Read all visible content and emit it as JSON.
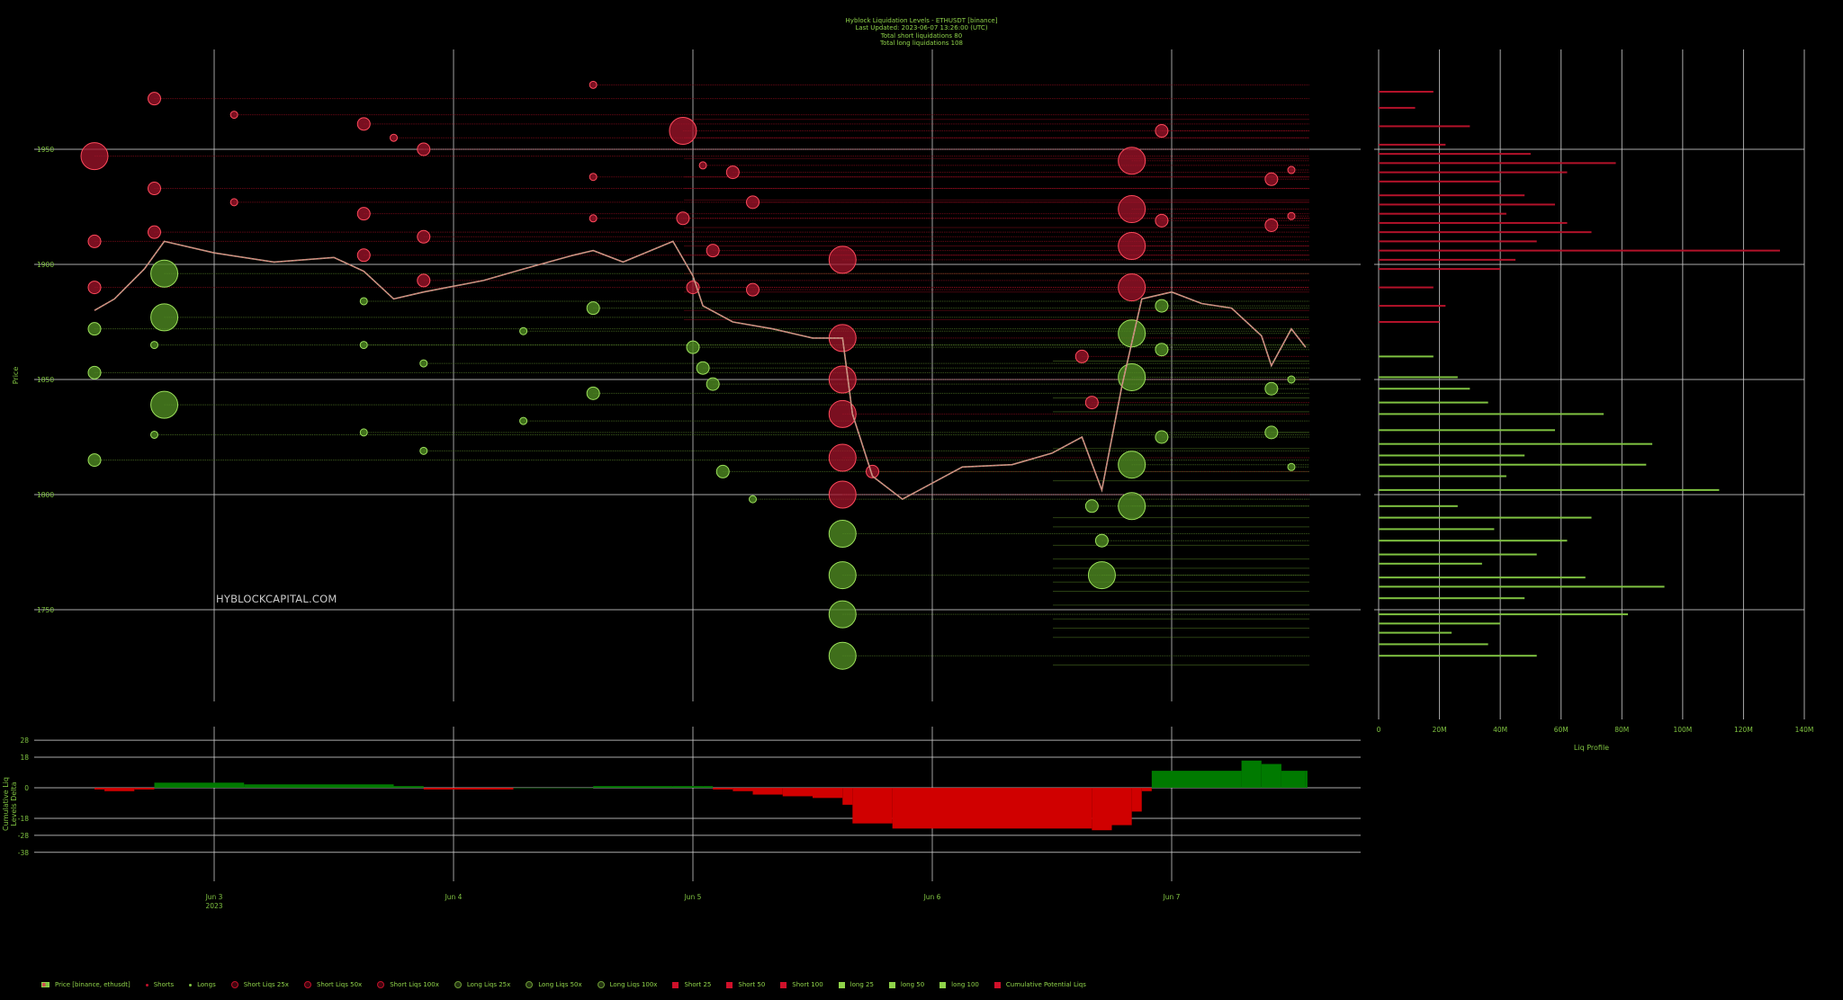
{
  "header": {
    "line1": "Hyblock Liquidation Levels - ETHUSDT [binance]",
    "line2": "Last Updated:  2023-06-07 13:26:00 (UTC)",
    "line3": "Total short liquidations 80",
    "line4": "Total long liquidations 108"
  },
  "watermark": "HYBLOCKCAPITAL.COM",
  "colors": {
    "background": "#000000",
    "text": "#7fc241",
    "short": "#c0102a",
    "long": "#7fc241",
    "delta_pos": "#007a00",
    "delta_neg": "#d00000",
    "grid": "#c8c8c8"
  },
  "chart_data": [
    {
      "id": "price",
      "type": "line",
      "ylabel": "Price",
      "ylim": [
        1720,
        2000
      ],
      "y_ticks": [
        "1950",
        "1900",
        "1850",
        "1800",
        "1750"
      ],
      "x_ticks": [
        "Jun 3",
        "Jun 4",
        "Jun 5",
        "Jun 6",
        "Jun 7"
      ],
      "x_tick_sub": "2023",
      "grid": true,
      "series": [
        {
          "name": "Price [binance, ethusdt]",
          "x": [
            "06-02 12:00",
            "06-02 14:00",
            "06-02 17:00",
            "06-02 19:00",
            "06-03 00:00",
            "06-03 06:00",
            "06-03 12:00",
            "06-03 15:00",
            "06-03 18:00",
            "06-03 21:00",
            "06-04 03:00",
            "06-04 07:00",
            "06-04 12:00",
            "06-04 14:00",
            "06-04 17:00",
            "06-04 22:00",
            "06-05 00:00",
            "06-05 01:00",
            "06-05 04:00",
            "06-05 08:00",
            "06-05 12:00",
            "06-05 15:00",
            "06-05 16:00",
            "06-05 18:00",
            "06-05 21:00",
            "06-06 03:00",
            "06-06 08:00",
            "06-06 12:00",
            "06-06 15:00",
            "06-06 17:00",
            "06-06 19:00",
            "06-06 21:00",
            "06-07 00:00",
            "06-07 03:00",
            "06-07 06:00",
            "06-07 09:00",
            "06-07 10:00",
            "06-07 12:00",
            "06-07 13:26"
          ],
          "y": [
            1880,
            1885,
            1898,
            1910,
            1905,
            1901,
            1903,
            1897,
            1885,
            1888,
            1893,
            1898,
            1904,
            1906,
            1901,
            1910,
            1895,
            1882,
            1875,
            1872,
            1868,
            1868,
            1835,
            1808,
            1798,
            1812,
            1813,
            1818,
            1825,
            1802,
            1847,
            1885,
            1888,
            1883,
            1881,
            1869,
            1856,
            1872,
            1864
          ]
        }
      ],
      "short_liqs": [
        {
          "x": "06-02 12:00",
          "y": 1947,
          "size": "100x"
        },
        {
          "x": "06-02 12:00",
          "y": 1910,
          "size": "50x"
        },
        {
          "x": "06-02 12:00",
          "y": 1890,
          "size": "50x"
        },
        {
          "x": "06-02 18:00",
          "y": 1972,
          "size": "50x"
        },
        {
          "x": "06-02 18:00",
          "y": 1933,
          "size": "50x"
        },
        {
          "x": "06-02 18:00",
          "y": 1914,
          "size": "50x"
        },
        {
          "x": "06-03 02:00",
          "y": 1965,
          "size": "25x"
        },
        {
          "x": "06-03 02:00",
          "y": 1927,
          "size": "25x"
        },
        {
          "x": "06-03 15:00",
          "y": 1961,
          "size": "50x"
        },
        {
          "x": "06-03 15:00",
          "y": 1922,
          "size": "50x"
        },
        {
          "x": "06-03 15:00",
          "y": 1904,
          "size": "50x"
        },
        {
          "x": "06-03 18:00",
          "y": 1955,
          "size": "25x"
        },
        {
          "x": "06-03 21:00",
          "y": 1950,
          "size": "50x"
        },
        {
          "x": "06-03 21:00",
          "y": 1912,
          "size": "50x"
        },
        {
          "x": "06-03 21:00",
          "y": 1893,
          "size": "50x"
        },
        {
          "x": "06-04 14:00",
          "y": 1978,
          "size": "25x"
        },
        {
          "x": "06-04 14:00",
          "y": 1938,
          "size": "25x"
        },
        {
          "x": "06-04 14:00",
          "y": 1920,
          "size": "25x"
        },
        {
          "x": "06-04 23:00",
          "y": 1958,
          "size": "100x"
        },
        {
          "x": "06-04 23:00",
          "y": 1920,
          "size": "50x"
        },
        {
          "x": "06-05 00:00",
          "y": 1890,
          "size": "50x"
        },
        {
          "x": "06-05 01:00",
          "y": 1943,
          "size": "25x"
        },
        {
          "x": "06-05 02:00",
          "y": 1906,
          "size": "50x"
        },
        {
          "x": "06-05 04:00",
          "y": 1940,
          "size": "50x"
        },
        {
          "x": "06-05 06:00",
          "y": 1927,
          "size": "50x"
        },
        {
          "x": "06-05 06:00",
          "y": 1889,
          "size": "50x"
        },
        {
          "x": "06-05 15:00",
          "y": 1902,
          "size": "100x"
        },
        {
          "x": "06-05 15:00",
          "y": 1868,
          "size": "100x"
        },
        {
          "x": "06-05 15:00",
          "y": 1850,
          "size": "100x"
        },
        {
          "x": "06-05 15:00",
          "y": 1835,
          "size": "100x"
        },
        {
          "x": "06-05 15:00",
          "y": 1816,
          "size": "100x"
        },
        {
          "x": "06-05 15:00",
          "y": 1800,
          "size": "100x"
        },
        {
          "x": "06-05 18:00",
          "y": 1810,
          "size": "50x"
        },
        {
          "x": "06-06 15:00",
          "y": 1860,
          "size": "50x"
        },
        {
          "x": "06-06 16:00",
          "y": 1840,
          "size": "50x"
        },
        {
          "x": "06-06 20:00",
          "y": 1945,
          "size": "100x"
        },
        {
          "x": "06-06 20:00",
          "y": 1924,
          "size": "100x"
        },
        {
          "x": "06-06 20:00",
          "y": 1908,
          "size": "100x"
        },
        {
          "x": "06-06 20:00",
          "y": 1890,
          "size": "100x"
        },
        {
          "x": "06-06 23:00",
          "y": 1958,
          "size": "50x"
        },
        {
          "x": "06-06 23:00",
          "y": 1919,
          "size": "50x"
        },
        {
          "x": "06-07 10:00",
          "y": 1937,
          "size": "50x"
        },
        {
          "x": "06-07 10:00",
          "y": 1917,
          "size": "50x"
        },
        {
          "x": "06-07 12:00",
          "y": 1941,
          "size": "25x"
        },
        {
          "x": "06-07 12:00",
          "y": 1921,
          "size": "25x"
        }
      ],
      "long_liqs": [
        {
          "x": "06-02 12:00",
          "y": 1872,
          "size": "50x"
        },
        {
          "x": "06-02 12:00",
          "y": 1853,
          "size": "50x"
        },
        {
          "x": "06-02 12:00",
          "y": 1815,
          "size": "50x"
        },
        {
          "x": "06-02 19:00",
          "y": 1896,
          "size": "100x"
        },
        {
          "x": "06-02 19:00",
          "y": 1877,
          "size": "100x"
        },
        {
          "x": "06-02 19:00",
          "y": 1839,
          "size": "100x"
        },
        {
          "x": "06-02 18:00",
          "y": 1865,
          "size": "25x"
        },
        {
          "x": "06-02 18:00",
          "y": 1826,
          "size": "25x"
        },
        {
          "x": "06-03 15:00",
          "y": 1884,
          "size": "25x"
        },
        {
          "x": "06-03 15:00",
          "y": 1865,
          "size": "25x"
        },
        {
          "x": "06-03 15:00",
          "y": 1827,
          "size": "25x"
        },
        {
          "x": "06-03 21:00",
          "y": 1857,
          "size": "25x"
        },
        {
          "x": "06-03 21:00",
          "y": 1819,
          "size": "25x"
        },
        {
          "x": "06-04 14:00",
          "y": 1881,
          "size": "50x"
        },
        {
          "x": "06-04 14:00",
          "y": 1844,
          "size": "50x"
        },
        {
          "x": "06-04 07:00",
          "y": 1871,
          "size": "25x"
        },
        {
          "x": "06-04 07:00",
          "y": 1832,
          "size": "25x"
        },
        {
          "x": "06-05 00:00",
          "y": 1864,
          "size": "50x"
        },
        {
          "x": "06-05 01:00",
          "y": 1855,
          "size": "50x"
        },
        {
          "x": "06-05 02:00",
          "y": 1848,
          "size": "50x"
        },
        {
          "x": "06-05 03:00",
          "y": 1810,
          "size": "50x"
        },
        {
          "x": "06-05 06:00",
          "y": 1798,
          "size": "25x"
        },
        {
          "x": "06-05 15:00",
          "y": 1783,
          "size": "100x"
        },
        {
          "x": "06-05 15:00",
          "y": 1765,
          "size": "100x"
        },
        {
          "x": "06-05 15:00",
          "y": 1748,
          "size": "100x"
        },
        {
          "x": "06-05 15:00",
          "y": 1730,
          "size": "100x"
        },
        {
          "x": "06-06 16:00",
          "y": 1795,
          "size": "50x"
        },
        {
          "x": "06-06 17:00",
          "y": 1780,
          "size": "50x"
        },
        {
          "x": "06-06 17:00",
          "y": 1765,
          "size": "100x"
        },
        {
          "x": "06-06 20:00",
          "y": 1870,
          "size": "100x"
        },
        {
          "x": "06-06 20:00",
          "y": 1851,
          "size": "100x"
        },
        {
          "x": "06-06 20:00",
          "y": 1813,
          "size": "100x"
        },
        {
          "x": "06-06 20:00",
          "y": 1795,
          "size": "100x"
        },
        {
          "x": "06-06 23:00",
          "y": 1882,
          "size": "50x"
        },
        {
          "x": "06-06 23:00",
          "y": 1863,
          "size": "50x"
        },
        {
          "x": "06-06 23:00",
          "y": 1825,
          "size": "50x"
        },
        {
          "x": "06-07 10:00",
          "y": 1846,
          "size": "50x"
        },
        {
          "x": "06-07 10:00",
          "y": 1827,
          "size": "50x"
        },
        {
          "x": "06-07 12:00",
          "y": 1850,
          "size": "25x"
        },
        {
          "x": "06-07 12:00",
          "y": 1812,
          "size": "25x"
        }
      ]
    },
    {
      "id": "delta",
      "type": "area",
      "ylabel": "Cumulative Liq Levels Delta",
      "ylim": [
        -40,
        28
      ],
      "y_ticks": [
        "28",
        "18",
        "0",
        "-18",
        "-28",
        "-38"
      ],
      "x_ticks": [
        "Jun 3",
        "Jun 4",
        "Jun 5",
        "Jun 6",
        "Jun 7"
      ],
      "x_tick_sub": "2023",
      "series": [
        {
          "name": "Cumulative Potential Liqs",
          "x": [
            "06-02 12:00",
            "06-02 13:00",
            "06-02 16:00",
            "06-02 18:00",
            "06-03 03:00",
            "06-03 18:00",
            "06-03 21:00",
            "06-04 06:00",
            "06-04 14:00",
            "06-04 22:00",
            "06-05 01:00",
            "06-05 02:00",
            "06-05 04:00",
            "06-05 06:00",
            "06-05 09:00",
            "06-05 12:00",
            "06-05 15:00",
            "06-05 16:00",
            "06-05 20:00",
            "06-06 16:00",
            "06-06 18:00",
            "06-06 20:00",
            "06-06 21:00",
            "06-06 22:00",
            "06-07 07:00",
            "06-07 09:00",
            "06-07 11:00",
            "06-07 13:26"
          ],
          "y": [
            -1,
            -2,
            -1,
            3,
            2,
            1,
            -1,
            0,
            1,
            1,
            1,
            -1,
            -2,
            -4,
            -5,
            -6,
            -10,
            -21,
            -24,
            -25,
            -22,
            -14,
            -2,
            10,
            16,
            14,
            10,
            10
          ]
        }
      ]
    },
    {
      "id": "profile",
      "type": "bar",
      "xlabel": "Liq Profile",
      "x_ticks": [
        "0",
        "20M",
        "40M",
        "60M",
        "80M",
        "100M",
        "120M",
        "140M"
      ],
      "xlim": [
        0,
        140
      ],
      "series": [
        {
          "name": "Short",
          "y": [
            1975,
            1968,
            1960,
            1952,
            1948,
            1944,
            1940,
            1936,
            1930,
            1926,
            1922,
            1918,
            1914,
            1910,
            1906,
            1902,
            1898,
            1890,
            1882,
            1875
          ],
          "values": [
            18,
            12,
            30,
            22,
            50,
            78,
            62,
            40,
            48,
            58,
            42,
            62,
            70,
            52,
            132,
            45,
            40,
            18,
            22,
            20
          ]
        },
        {
          "name": "Long",
          "y": [
            1860,
            1851,
            1846,
            1840,
            1835,
            1828,
            1822,
            1817,
            1813,
            1808,
            1802,
            1795,
            1790,
            1785,
            1780,
            1774,
            1770,
            1764,
            1760,
            1755,
            1748,
            1744,
            1740,
            1735,
            1730
          ],
          "values": [
            18,
            26,
            30,
            36,
            74,
            58,
            90,
            48,
            88,
            42,
            112,
            26,
            70,
            38,
            62,
            52,
            34,
            68,
            94,
            48,
            82,
            40,
            24,
            36,
            52
          ]
        }
      ]
    }
  ],
  "legend": [
    {
      "label": "Price [binance, ethusdt]",
      "kind": "price",
      "color": "#8fd34a"
    },
    {
      "label": "Shorts",
      "kind": "dot",
      "color": "#c0102a"
    },
    {
      "label": "Longs",
      "kind": "dot",
      "color": "#7fc241"
    },
    {
      "label": "Short Liqs 25x",
      "kind": "circle",
      "color": "#c0102a"
    },
    {
      "label": "Short Liqs 50x",
      "kind": "circle",
      "color": "#c0102a"
    },
    {
      "label": "Short Liqs 100x",
      "kind": "circle",
      "color": "#c0102a"
    },
    {
      "label": "Long Liqs 25x",
      "kind": "circle",
      "color": "#6c9a35"
    },
    {
      "label": "Long Liqs 50x",
      "kind": "circle",
      "color": "#6c9a35"
    },
    {
      "label": "Long Liqs 100x",
      "kind": "circle",
      "color": "#6c9a35"
    },
    {
      "label": "Short 25",
      "kind": "square",
      "color": "#d0102a"
    },
    {
      "label": "Short 50",
      "kind": "square",
      "color": "#d0102a"
    },
    {
      "label": "Short 100",
      "kind": "square",
      "color": "#d0102a"
    },
    {
      "label": "long 25",
      "kind": "square",
      "color": "#8fd34a"
    },
    {
      "label": "long 50",
      "kind": "square",
      "color": "#8fd34a"
    },
    {
      "label": "long 100",
      "kind": "square",
      "color": "#8fd34a"
    },
    {
      "label": "Cumulative Potential Liqs",
      "kind": "square",
      "color": "#d0102a"
    }
  ]
}
